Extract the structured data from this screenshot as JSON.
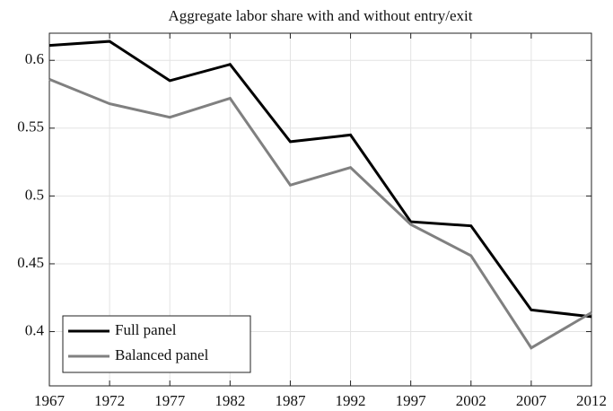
{
  "chart_data": {
    "type": "line",
    "title": "Aggregate labor share with and without entry/exit",
    "x": [
      1967,
      1972,
      1977,
      1982,
      1987,
      1992,
      1997,
      2002,
      2007,
      2012
    ],
    "series": [
      {
        "name": "Full panel",
        "color": "#000000",
        "values": [
          0.611,
          0.614,
          0.585,
          0.597,
          0.54,
          0.545,
          0.481,
          0.478,
          0.416,
          0.411
        ]
      },
      {
        "name": "Balanced panel",
        "color": "#808080",
        "values": [
          0.586,
          0.568,
          0.558,
          0.572,
          0.508,
          0.521,
          0.479,
          0.456,
          0.388,
          0.414
        ]
      }
    ],
    "xlim": [
      1967,
      2012
    ],
    "xticks": [
      1967,
      1972,
      1977,
      1982,
      1987,
      1992,
      1997,
      2002,
      2007,
      2012
    ],
    "ylim": [
      0.36,
      0.62
    ],
    "yticks": [
      0.4,
      0.45,
      0.5,
      0.55,
      0.6
    ],
    "grid": true,
    "legend": "lower left"
  }
}
